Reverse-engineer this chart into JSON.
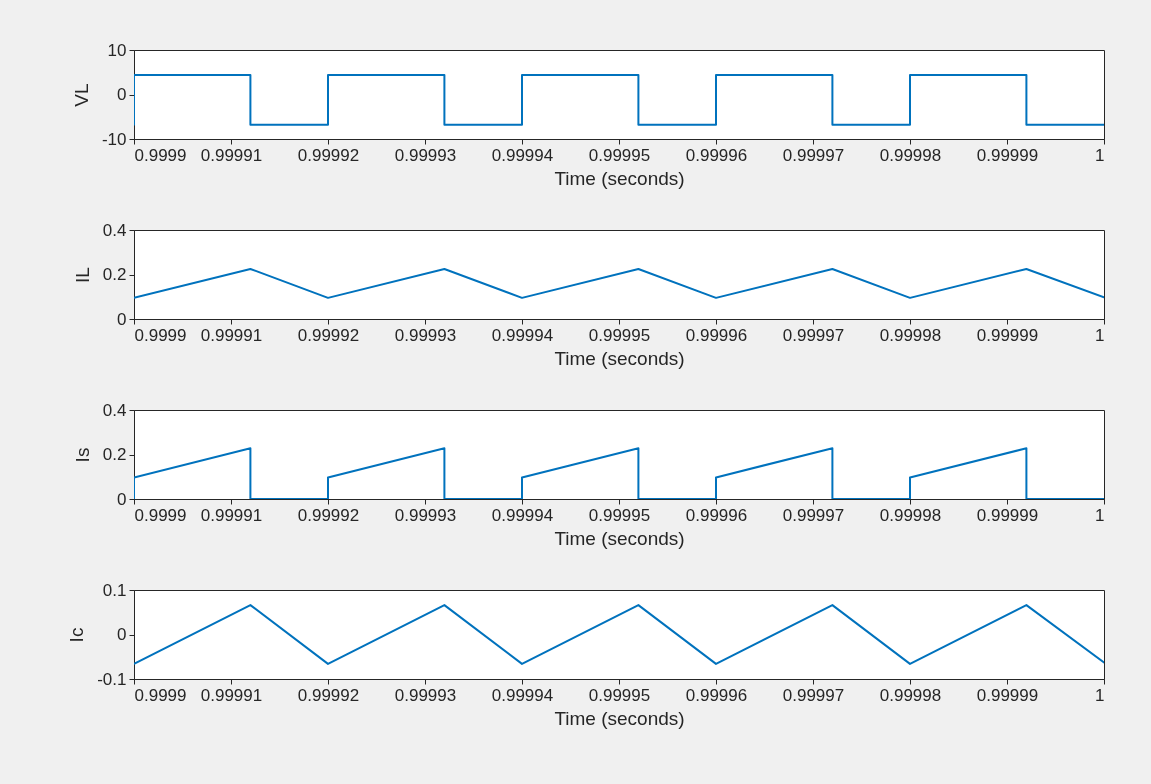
{
  "chart_data": [
    {
      "type": "line",
      "xlabel": "Time (seconds)",
      "ylabel": "VL",
      "x": [
        0.9999,
        0.9999,
        0.999912,
        0.999912,
        0.99992,
        0.99992,
        0.999932,
        0.999932,
        0.99994,
        0.99994,
        0.999952,
        0.999952,
        0.99996,
        0.99996,
        0.999972,
        0.999972,
        0.99998,
        0.99998,
        0.999992,
        0.999992,
        1
      ],
      "series": [
        {
          "color": "#0072bd",
          "values": [
            -6.8,
            4.4,
            4.4,
            -6.8,
            -6.8,
            4.4,
            4.4,
            -6.8,
            -6.8,
            4.4,
            4.4,
            -6.8,
            -6.8,
            4.4,
            4.4,
            -6.8,
            -6.8,
            4.4,
            4.4,
            -6.8,
            -6.8
          ]
        }
      ],
      "xlim": [
        0.9999,
        1
      ],
      "xticks": [
        0.9999,
        0.99991,
        0.99992,
        0.99993,
        0.99994,
        0.99995,
        0.99996,
        0.99997,
        0.99998,
        0.99999,
        1
      ],
      "ylim": [
        -10,
        10
      ],
      "yticks": [
        -10,
        0,
        10
      ],
      "grid": false
    },
    {
      "type": "line",
      "xlabel": "Time (seconds)",
      "ylabel": "IL",
      "x": [
        0.9999,
        0.999912,
        0.99992,
        0.999932,
        0.99994,
        0.999952,
        0.99996,
        0.999972,
        0.99998,
        0.999992,
        1
      ],
      "series": [
        {
          "color": "#0072bd",
          "values": [
            0.095,
            0.225,
            0.095,
            0.225,
            0.095,
            0.225,
            0.095,
            0.225,
            0.095,
            0.225,
            0.098
          ]
        }
      ],
      "xlim": [
        0.9999,
        1
      ],
      "xticks": [
        0.9999,
        0.99991,
        0.99992,
        0.99993,
        0.99994,
        0.99995,
        0.99996,
        0.99997,
        0.99998,
        0.99999,
        1
      ],
      "ylim": [
        0,
        0.4
      ],
      "yticks": [
        0,
        0.2,
        0.4
      ],
      "grid": false
    },
    {
      "type": "line",
      "xlabel": "Time (seconds)",
      "ylabel": "Is",
      "x": [
        0.9999,
        0.9999,
        0.999912,
        0.999912,
        0.99992,
        0.99992,
        0.999932,
        0.999932,
        0.99994,
        0.99994,
        0.999952,
        0.999952,
        0.99996,
        0.99996,
        0.999972,
        0.999972,
        0.99998,
        0.99998,
        0.999992,
        0.999992,
        1
      ],
      "series": [
        {
          "color": "#0072bd",
          "values": [
            0,
            0.097,
            0.228,
            0,
            0,
            0.097,
            0.228,
            0,
            0,
            0.097,
            0.228,
            0,
            0,
            0.097,
            0.228,
            0,
            0,
            0.097,
            0.228,
            0,
            0
          ]
        }
      ],
      "xlim": [
        0.9999,
        1
      ],
      "xticks": [
        0.9999,
        0.99991,
        0.99992,
        0.99993,
        0.99994,
        0.99995,
        0.99996,
        0.99997,
        0.99998,
        0.99999,
        1
      ],
      "ylim": [
        0,
        0.4
      ],
      "yticks": [
        0,
        0.2,
        0.4
      ],
      "grid": false
    },
    {
      "type": "line",
      "xlabel": "Time (seconds)",
      "ylabel": "Ic",
      "x": [
        0.9999,
        0.999912,
        0.99992,
        0.999932,
        0.99994,
        0.999952,
        0.99996,
        0.999972,
        0.99998,
        0.999992,
        1
      ],
      "series": [
        {
          "color": "#0072bd",
          "values": [
            -0.066,
            0.066,
            -0.066,
            0.066,
            -0.066,
            0.066,
            -0.066,
            0.066,
            -0.066,
            0.066,
            -0.063
          ]
        }
      ],
      "xlim": [
        0.9999,
        1
      ],
      "xticks": [
        0.9999,
        0.99991,
        0.99992,
        0.99993,
        0.99994,
        0.99995,
        0.99996,
        0.99997,
        0.99998,
        0.99999,
        1
      ],
      "ylim": [
        -0.1,
        0.1
      ],
      "yticks": [
        -0.1,
        0,
        0.1
      ],
      "grid": false
    }
  ]
}
